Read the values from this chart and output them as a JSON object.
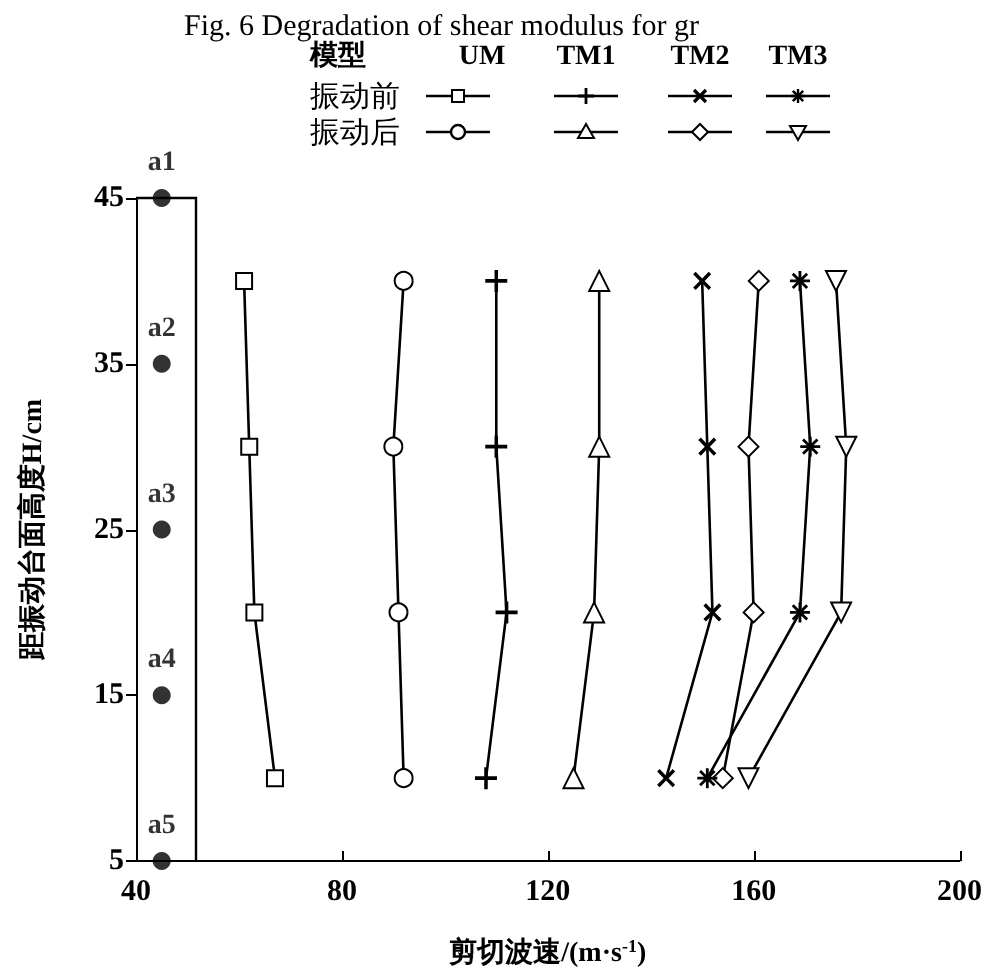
{
  "chart_data": {
    "type": "line",
    "title": "Fig. 6 Degradation of shear modulus for gr",
    "xlabel": "剪切波速/(m·s$^{-1}$)",
    "ylabel": "距振动台面高度H/cm",
    "legend_title": "模型",
    "grid": false,
    "line_style": "solid",
    "xlim": [
      40,
      200
    ],
    "xticks": [
      40,
      80,
      120,
      160,
      200
    ],
    "ylim": [
      5,
      45
    ],
    "yticks": [
      5,
      15,
      25,
      35,
      45
    ],
    "series": [
      {
        "color": "#000000",
        "marker": "square",
        "x": [
          67,
          63,
          62,
          61
        ],
        "values": [
          10,
          20,
          30,
          40
        ]
      },
      {
        "color": "#000000",
        "marker": "circle",
        "x": [
          92,
          91,
          90,
          92
        ],
        "values": [
          10,
          20,
          30,
          40
        ]
      },
      {
        "color": "#000000",
        "marker": "cross",
        "x": [
          108,
          112,
          110,
          110
        ],
        "values": [
          10,
          20,
          30,
          40
        ]
      },
      {
        "color": "#000000",
        "marker": "triangle",
        "x": [
          125,
          129,
          130,
          130
        ],
        "values": [
          10,
          20,
          30,
          40
        ]
      },
      {
        "color": "#000000",
        "marker": "x",
        "x": [
          143,
          152,
          151,
          150
        ],
        "values": [
          10,
          20,
          30,
          40
        ]
      },
      {
        "color": "#000000",
        "marker": "diamond",
        "x": [
          154,
          160,
          159,
          161
        ],
        "values": [
          10,
          20,
          30,
          40
        ]
      },
      {
        "color": "#000000",
        "marker": "star",
        "x": [
          151,
          169,
          171,
          169
        ],
        "values": [
          10,
          20,
          30,
          40
        ]
      },
      {
        "color": "#000000",
        "marker": "triangle_down",
        "x": [
          159,
          177,
          178,
          176
        ],
        "values": [
          10,
          20,
          30,
          40
        ]
      },
      {
        "type": "scatter",
        "color": "#000000",
        "marker": "circle",
        "x": [
          45,
          45,
          45,
          45,
          45
        ],
        "values": [
          45,
          35,
          25,
          15,
          5
        ],
        "value_labels": [
          "a1",
          "a2",
          "a3",
          "a4",
          "a5"
        ]
      }
    ],
    "annotations": [
      "UM",
      "TM1",
      "TM2",
      "TM3",
      "振动前",
      "振动后"
    ]
  }
}
